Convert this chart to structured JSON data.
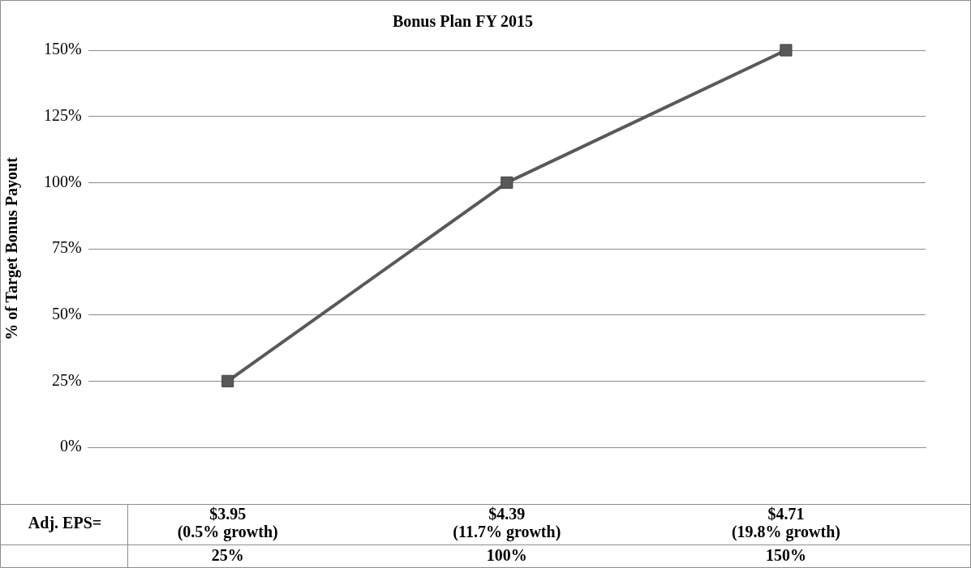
{
  "chart_data": {
    "type": "line",
    "title": "Bonus Plan FY 2015",
    "ylabel": "% of Target Bonus Payout",
    "xlabel": "Adj. EPS=",
    "categories": [
      "$3.95 (0.5% growth)",
      "$4.39 (11.7% growth)",
      "$4.71 (19.8% growth)"
    ],
    "series": [
      {
        "color": "#595959",
        "values": [
          25,
          100,
          150
        ],
        "value_labels": [
          "25%",
          "100%",
          "150%"
        ]
      }
    ],
    "ylim": [
      0,
      150
    ],
    "yticks": [
      {
        "value": 0,
        "label": "0%"
      },
      {
        "value": 25,
        "label": "25%"
      },
      {
        "value": 50,
        "label": "50%"
      },
      {
        "value": 75,
        "label": "75%"
      },
      {
        "value": 100,
        "label": "100%"
      },
      {
        "value": 125,
        "label": "125%"
      },
      {
        "value": 150,
        "label": "150%"
      }
    ],
    "grid": "y",
    "legend": false,
    "marker": "square",
    "line_style": "solid"
  }
}
